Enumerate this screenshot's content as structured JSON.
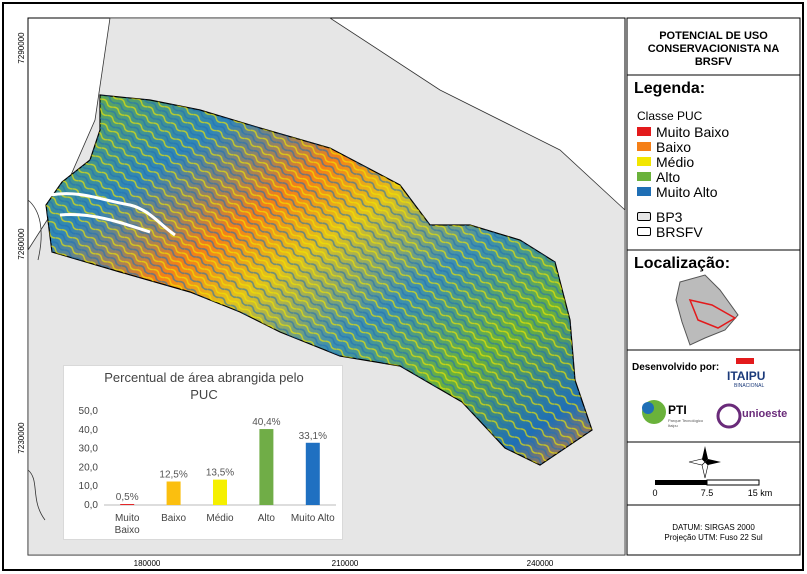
{
  "map": {
    "x_coords": [
      "180000",
      "210000",
      "240000"
    ],
    "y_coords": [
      "7290000",
      "7260000",
      "7230000"
    ]
  },
  "legend_panel": {
    "title_lines": [
      "POTENCIAL DE USO",
      "CONSERVACIONISTA NA",
      "BRSFV"
    ],
    "legend_heading": "Legenda:",
    "class_heading": "Classe PUC",
    "classes": [
      {
        "label": "Muito Baixo",
        "color": "#e31a1c"
      },
      {
        "label": "Baixo",
        "color": "#f57f17"
      },
      {
        "label": "Médio",
        "color": "#f2e600"
      },
      {
        "label": "Alto",
        "color": "#6ab23b"
      },
      {
        "label": "Muito Alto",
        "color": "#1f6fb5"
      }
    ],
    "layers": [
      {
        "label": "BP3",
        "color": "#e6e6e6"
      },
      {
        "label": "BRSFV",
        "color": "#ffffff"
      }
    ],
    "location_heading": "Localização:",
    "developed_by": "Desenvolvido por:",
    "logos": {
      "itaipu": "ITAIPU",
      "itaipu_sub": "BINACIONAL",
      "pti": "PTI",
      "pti_sub": "Parque Tecnológico Itaipu",
      "unioeste": "unioeste"
    },
    "scale_labels": [
      "0",
      "7.5",
      "15 km"
    ],
    "datum": "DATUM: SIRGAS 2000",
    "projection": "Projeção UTM: Fuso 22 Sul"
  },
  "chart_data": {
    "type": "bar",
    "title": "Percentual de área abrangida pelo PUC",
    "categories": [
      "Muito Baixo",
      "Baixo",
      "Médio",
      "Alto",
      "Muito Alto"
    ],
    "values": [
      0.5,
      12.5,
      13.5,
      40.4,
      33.1
    ],
    "value_labels": [
      "0,5%",
      "12,5%",
      "13,5%",
      "40,4%",
      "33,1%"
    ],
    "colors": [
      "#e31a1c",
      "#fbbf0f",
      "#f5f000",
      "#70ad47",
      "#1f70c1"
    ],
    "ylim": [
      0,
      50
    ],
    "yticks": [
      {
        "value": 0,
        "label": "0,0"
      },
      {
        "value": 10,
        "label": "10,0"
      },
      {
        "value": 20,
        "label": "20,0"
      },
      {
        "value": 30,
        "label": "30,0"
      },
      {
        "value": 40,
        "label": "40,0"
      },
      {
        "value": 50,
        "label": "50,0"
      }
    ],
    "grid": false
  }
}
